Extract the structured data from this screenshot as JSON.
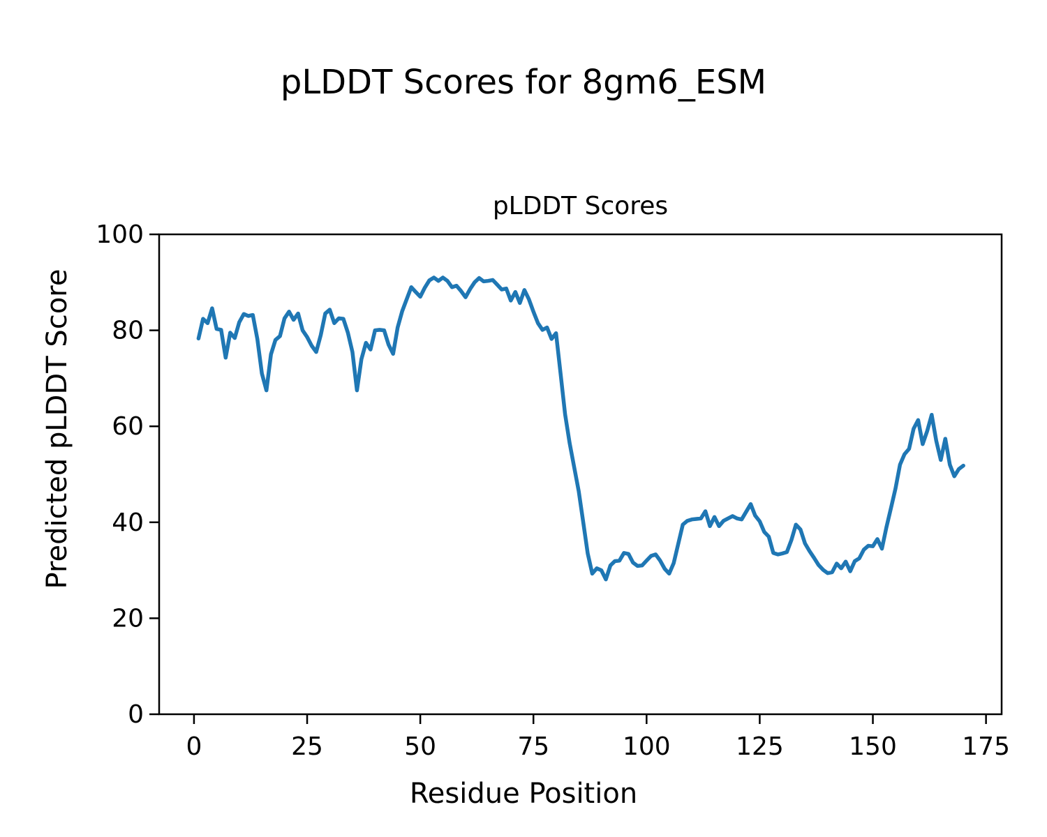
{
  "figure": {
    "suptitle": "pLDDT Scores for 8gm6_ESM",
    "axes_title": "pLDDT Scores",
    "xlabel": "Residue Position",
    "ylabel": "Predicted pLDDT Score"
  },
  "chart_data": {
    "type": "line",
    "title": "pLDDT Scores",
    "suptitle": "pLDDT Scores for 8gm6_ESM",
    "xlabel": "Residue Position",
    "ylabel": "Predicted pLDDT Score",
    "line_color": "#1f77b4",
    "background_color": "#ffffff",
    "grid": false,
    "legend": "none",
    "xlim": [
      -7.7,
      178.45
    ],
    "ylim": [
      0,
      100
    ],
    "x_ticks": [
      0,
      25,
      50,
      75,
      100,
      125,
      150,
      175
    ],
    "y_ticks": [
      0,
      20,
      40,
      60,
      80,
      100
    ],
    "x_start": 1,
    "x_step": 1,
    "series": [
      {
        "name": "pLDDT",
        "values": [
          78.3,
          82.4,
          81.5,
          84.6,
          80.3,
          80.1,
          74.3,
          79.5,
          78.4,
          81.7,
          83.4,
          83.0,
          83.2,
          78.2,
          71.0,
          67.5,
          75.0,
          78.0,
          78.8,
          82.5,
          83.9,
          82.2,
          83.5,
          80.0,
          78.6,
          76.8,
          75.5,
          79.0,
          83.5,
          84.3,
          81.5,
          82.5,
          82.4,
          79.5,
          75.5,
          67.5,
          74.0,
          77.4,
          76.0,
          80.0,
          80.1,
          80.0,
          77.0,
          75.1,
          80.6,
          84.0,
          86.5,
          89.0,
          88.0,
          87.0,
          88.9,
          90.4,
          91.0,
          90.3,
          91.0,
          90.3,
          89.0,
          89.3,
          88.2,
          86.9,
          88.6,
          90.0,
          90.9,
          90.2,
          90.3,
          90.5,
          89.5,
          88.5,
          88.7,
          86.2,
          88.0,
          85.7,
          88.4,
          86.5,
          83.9,
          81.5,
          80.1,
          80.6,
          78.2,
          79.4,
          71.0,
          62.5,
          56.5,
          51.5,
          46.5,
          40.0,
          33.5,
          29.3,
          30.4,
          30.0,
          28.1,
          31.0,
          31.9,
          32.0,
          33.6,
          33.4,
          31.6,
          30.9,
          31.0,
          32.0,
          33.0,
          33.3,
          32.0,
          30.3,
          29.3,
          31.5,
          35.5,
          39.5,
          40.3,
          40.6,
          40.7,
          40.8,
          42.3,
          39.2,
          41.1,
          39.2,
          40.3,
          40.8,
          41.3,
          40.8,
          40.6,
          42.2,
          43.8,
          41.4,
          40.2,
          38.0,
          37.0,
          33.6,
          33.3,
          33.5,
          33.8,
          36.3,
          39.5,
          38.5,
          35.6,
          34.0,
          32.6,
          31.1,
          30.1,
          29.4,
          29.6,
          31.4,
          30.4,
          31.8,
          29.8,
          31.9,
          32.5,
          34.3,
          35.1,
          35.0,
          36.5,
          34.5,
          39.0,
          43.0,
          47.0,
          52.0,
          54.2,
          55.3,
          59.5,
          61.3,
          56.3,
          59.0,
          62.4,
          57.0,
          53.0,
          57.4,
          52.0,
          49.6,
          51.1,
          51.8
        ]
      }
    ]
  }
}
